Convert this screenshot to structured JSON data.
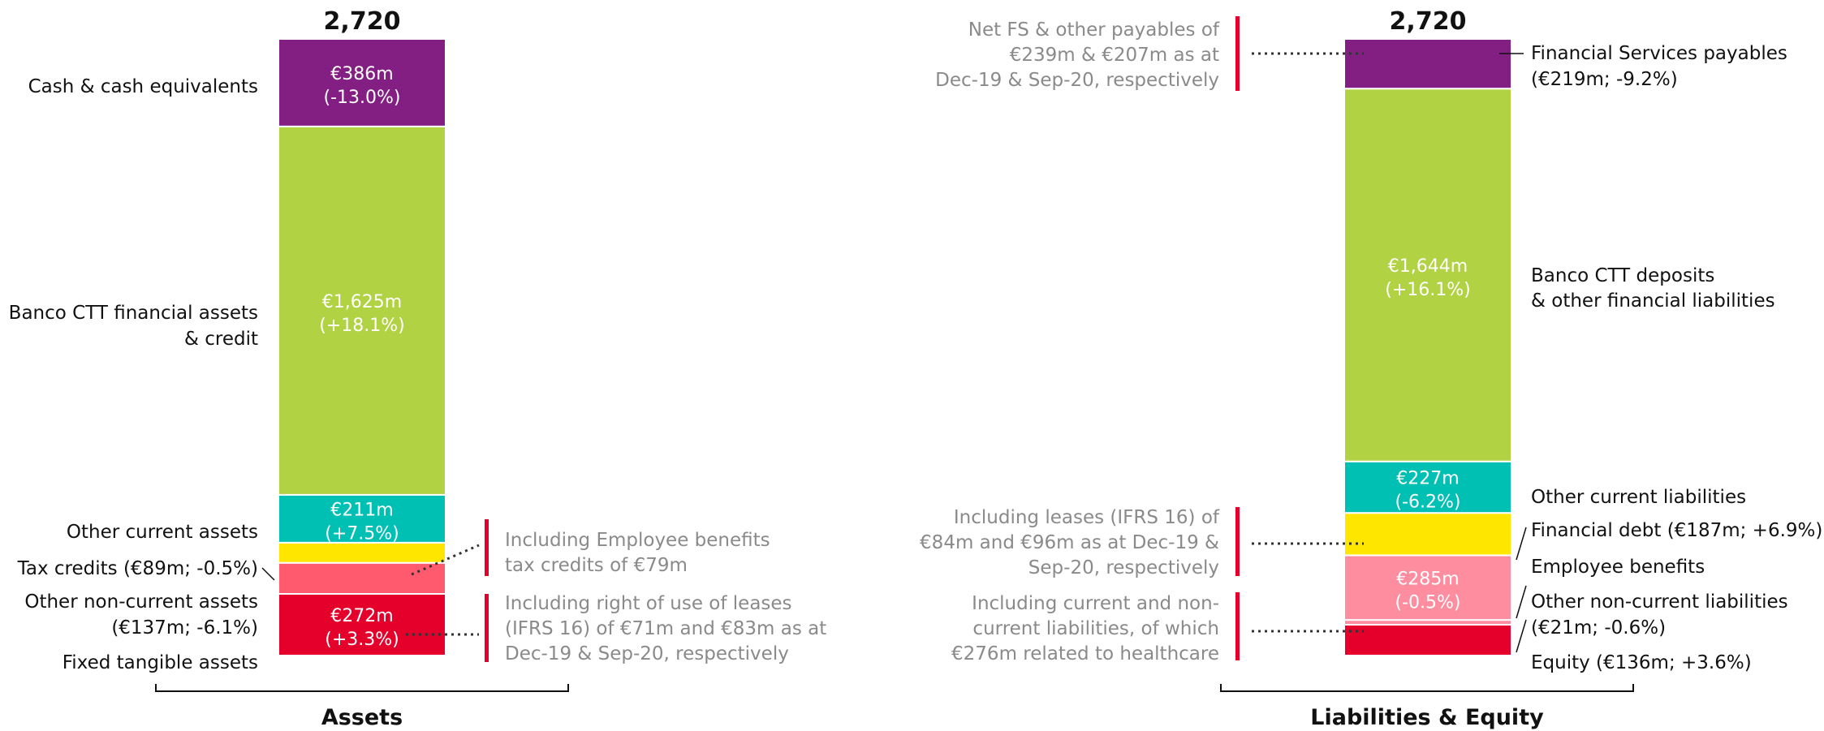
{
  "chart_data": {
    "type": "bar",
    "stacked": true,
    "unit": "€m",
    "categories": [
      "Assets",
      "Liabilities & Equity"
    ],
    "columns": [
      {
        "name": "Assets",
        "total_label": "2,720",
        "segments": [
          {
            "label": "Fixed tangible assets",
            "value": 272,
            "value_label": "€272m",
            "change_label": "(+3.3%)",
            "color": "#e4002b"
          },
          {
            "label": "Other non-current assets (€137m; -6.1%)",
            "label_lines": [
              "Other non-current assets",
              "(€137m; -6.1%)"
            ],
            "value": 137,
            "value_label": "",
            "change_label": "",
            "color": "#ff5a6e"
          },
          {
            "label": "Tax credits (€89m; -0.5%)",
            "label_lines": [
              "Tax credits (€89m; -0.5%)"
            ],
            "value": 89,
            "value_label": "",
            "change_label": "",
            "color": "#ffe600"
          },
          {
            "label": "Other current assets",
            "value": 211,
            "value_label": "€211m",
            "change_label": "(+7.5%)",
            "color": "#00bfb3"
          },
          {
            "label": "Banco CTT financial assets & credit",
            "label_lines": [
              "Banco CTT financial assets",
              "& credit"
            ],
            "value": 1625,
            "value_label": "€1,625m",
            "change_label": "(+18.1%)",
            "color": "#b1d243"
          },
          {
            "label": "Cash & cash equivalents",
            "value": 386,
            "value_label": "€386m",
            "change_label": "(-13.0%)",
            "color": "#831f82"
          }
        ],
        "notes": [
          {
            "lines": [
              "Including Employee benefits",
              "tax credits of €79m"
            ]
          },
          {
            "lines": [
              "Including right of use of leases",
              "(IFRS 16) of €71m and €83m as at",
              "Dec-19 & Sep-20, respectively"
            ]
          }
        ]
      },
      {
        "name": "Liabilities & Equity",
        "total_label": "2,720",
        "segments": [
          {
            "label": "Equity (€136m; +3.6%)",
            "value": 136,
            "value_label": "",
            "change_label": "",
            "color": "#e4002b"
          },
          {
            "label": "Other non-current liabilities (€21m; -0.6%)",
            "label_lines": [
              "Other non-current liabilities",
              "(€21m; -0.6%)"
            ],
            "value": 21,
            "value_label": "",
            "change_label": "",
            "color": "#ff8da0"
          },
          {
            "label": "Employee benefits",
            "value": 285,
            "value_label": "€285m",
            "change_label": "(-0.5%)",
            "color": "#ff8da0"
          },
          {
            "label": "Financial debt (€187m; +6.9%)",
            "value": 187,
            "value_label": "",
            "change_label": "",
            "color": "#ffe600"
          },
          {
            "label": "Other current liabilities",
            "value": 227,
            "value_label": "€227m",
            "change_label": "(-6.2%)",
            "color": "#00bfb3"
          },
          {
            "label": "Banco CTT deposits & other financial liabilities",
            "label_lines": [
              "Banco CTT deposits",
              "& other financial liabilities"
            ],
            "value": 1644,
            "value_label": "€1,644m",
            "change_label": "(+16.1%)",
            "color": "#b1d243"
          },
          {
            "label": "Financial Services payables (€219m; -9.2%)",
            "label_lines": [
              "Financial Services payables",
              "(€219m; -9.2%)"
            ],
            "value": 219,
            "value_label": "",
            "change_label": "",
            "color": "#831f82"
          }
        ],
        "notes": [
          {
            "lines": [
              "Net FS & other payables of",
              "€239m & €207m as at",
              "Dec-19 & Sep-20, respectively"
            ]
          },
          {
            "lines": [
              "Including leases (IFRS 16) of",
              "€84m and €96m as at Dec-19 &",
              "Sep-20, respectively"
            ]
          },
          {
            "lines": [
              "Including current and non-",
              "current liabilities, of which",
              "€276m related to healthcare"
            ]
          }
        ]
      }
    ],
    "colors": {
      "accent_bar": "#e4002b",
      "note_text": "#8a8a8a",
      "dotted": "#333333"
    }
  }
}
